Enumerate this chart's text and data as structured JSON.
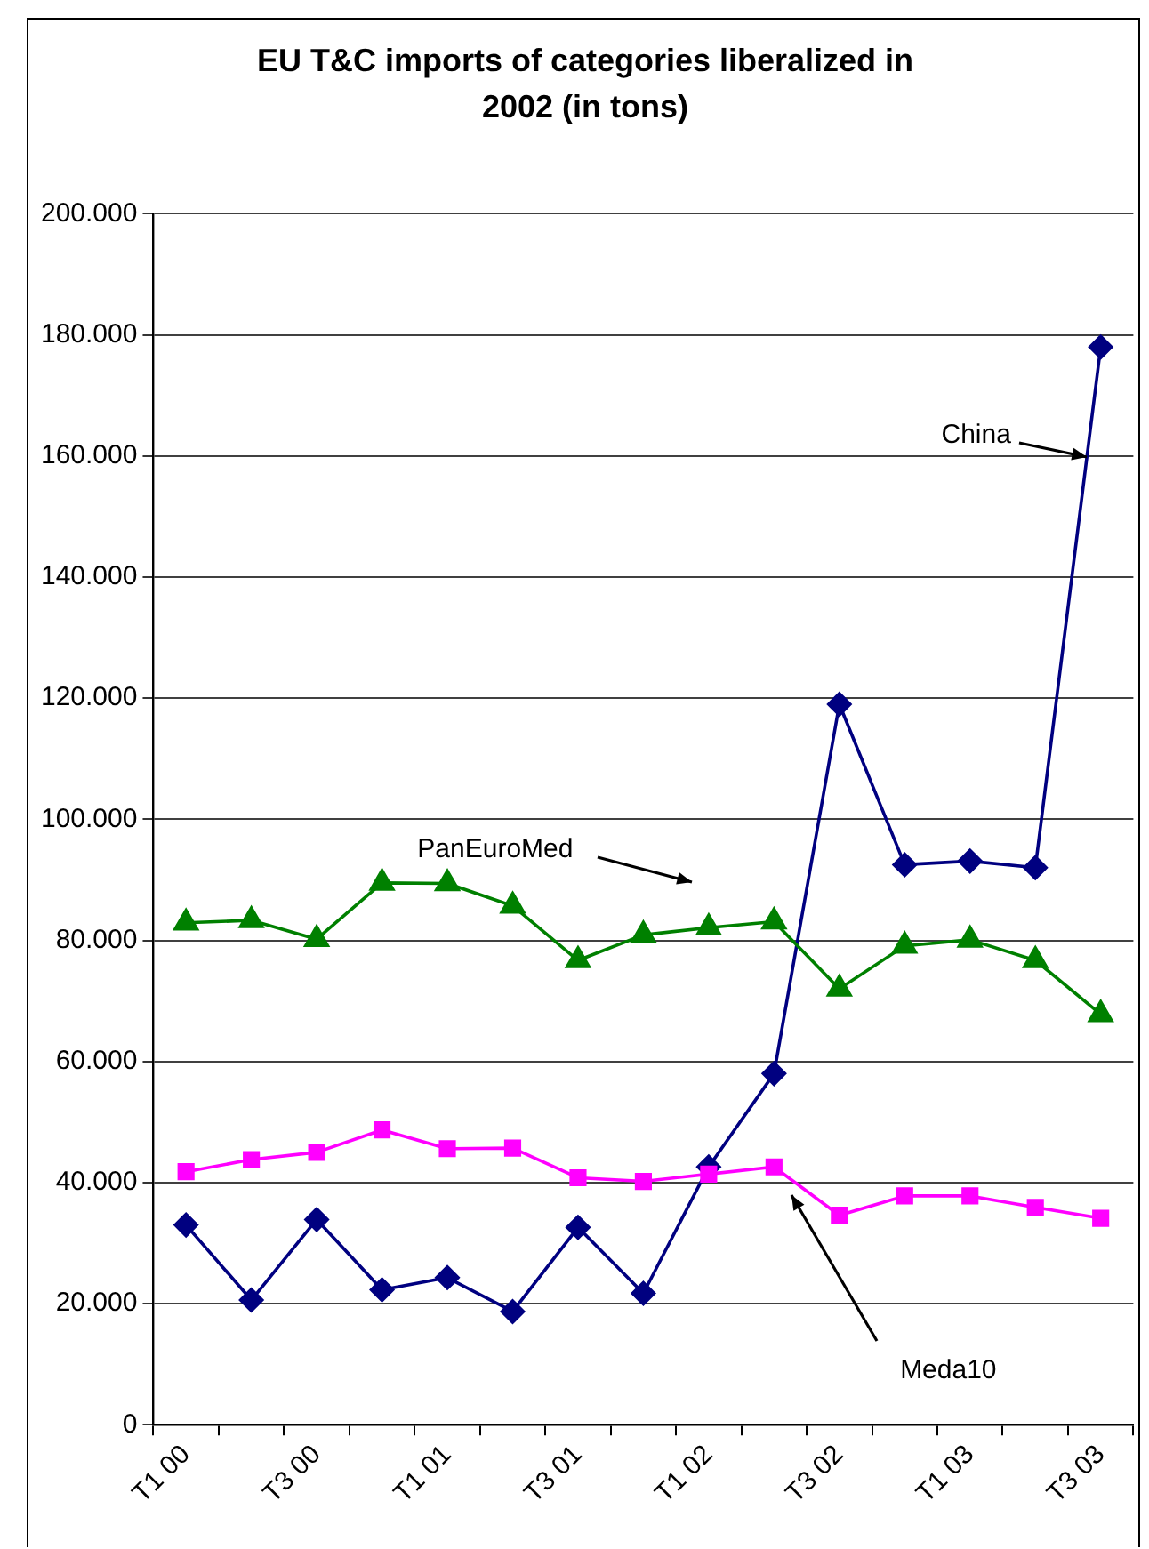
{
  "chart_data": {
    "type": "line",
    "title": "EU T&C imports of categories liberalized in 2002 (in tons)",
    "categories": [
      "T1 00",
      null,
      "T3 00",
      null,
      "T1 01",
      null,
      "T3 01",
      null,
      "T1 02",
      null,
      "T3 02",
      null,
      "T1 03",
      null,
      "T3 03"
    ],
    "series": [
      {
        "name": "China",
        "color": "#000080",
        "marker": "diamond",
        "values": [
          33000,
          20600,
          33900,
          22300,
          24300,
          18700,
          32600,
          21700,
          42600,
          58000,
          119000,
          92500,
          93100,
          92000,
          178000
        ]
      },
      {
        "name": "PanEuroMed",
        "color": "#008000",
        "marker": "triangle",
        "values": [
          82900,
          83300,
          80200,
          89500,
          89400,
          85700,
          76700,
          80900,
          82100,
          83100,
          72000,
          79100,
          80100,
          76700,
          67800
        ]
      },
      {
        "name": "Meda10",
        "color": "#ff00ff",
        "marker": "square",
        "values": [
          41800,
          43800,
          45000,
          48700,
          45600,
          45700,
          40800,
          40200,
          41400,
          42600,
          34600,
          37800,
          37800,
          35900,
          34100
        ]
      }
    ],
    "ylim": [
      0,
      200000
    ],
    "yticks": [
      0,
      {
        "value": 20000,
        "label": "20.000"
      },
      {
        "value": 40000,
        "label": "40.000"
      },
      {
        "value": 60000,
        "label": "60.000"
      },
      {
        "value": 80000,
        "label": "80.000"
      },
      {
        "value": 100000,
        "label": "100.000"
      },
      {
        "value": 120000,
        "label": "120.000"
      },
      {
        "value": 140000,
        "label": "140.000"
      },
      {
        "value": 160000,
        "label": "160.000"
      },
      {
        "value": 180000,
        "label": "180.000"
      },
      {
        "value": 200000,
        "label": "200.000"
      }
    ],
    "grid": "y",
    "legend": false,
    "line_style": "solid"
  }
}
